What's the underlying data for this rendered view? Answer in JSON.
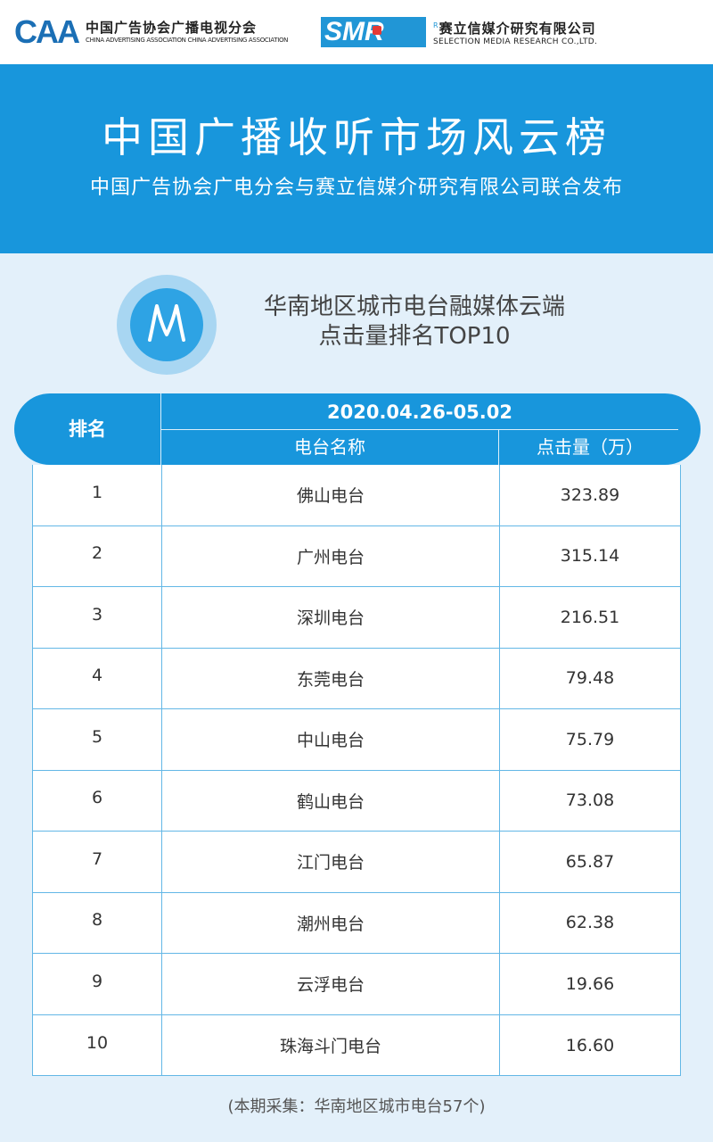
{
  "logos": {
    "caa": {
      "mark": "CAA",
      "cn": "中国广告协会广播电视分会",
      "en": "CHINA ADVERTISING ASSOCIATION CHINA ADVERTISING ASSOCIATION"
    },
    "smr": {
      "mark": "SMR",
      "registered": "R",
      "cn": "赛立信媒介研究有限公司",
      "en": "SELECTION MEDIA RESEARCH CO.,LTD."
    }
  },
  "banner": {
    "title": "中国广播收听市场风云榜",
    "subtitle": "中国广告协会广电分会与赛立信媒介研究有限公司联合发布"
  },
  "report": {
    "icon_letter": "M",
    "title_line1": "华南地区城市电台融媒体云端",
    "title_line2": "点击量排名TOP10"
  },
  "table": {
    "header_rank": "排名",
    "header_date": "2020.04.26-05.02",
    "header_name": "电台名称",
    "header_clicks": "点击量（万）",
    "rows": [
      {
        "rank": "1",
        "name": "佛山电台",
        "clicks": "323.89"
      },
      {
        "rank": "2",
        "name": "广州电台",
        "clicks": "315.14"
      },
      {
        "rank": "3",
        "name": "深圳电台",
        "clicks": "216.51"
      },
      {
        "rank": "4",
        "name": "东莞电台",
        "clicks": "79.48"
      },
      {
        "rank": "5",
        "name": "中山电台",
        "clicks": "75.79"
      },
      {
        "rank": "6",
        "name": "鹤山电台",
        "clicks": "73.08"
      },
      {
        "rank": "7",
        "name": "江门电台",
        "clicks": "65.87"
      },
      {
        "rank": "8",
        "name": "潮州电台",
        "clicks": "62.38"
      },
      {
        "rank": "9",
        "name": "云浮电台",
        "clicks": "19.66"
      },
      {
        "rank": "10",
        "name": "珠海斗门电台",
        "clicks": "16.60"
      }
    ]
  },
  "footnote": "(本期采集：华南地区城市电台57个)",
  "colors": {
    "banner_blue": "#1896dc",
    "page_background": "#e3f0fa",
    "table_border": "#63b7e6"
  }
}
